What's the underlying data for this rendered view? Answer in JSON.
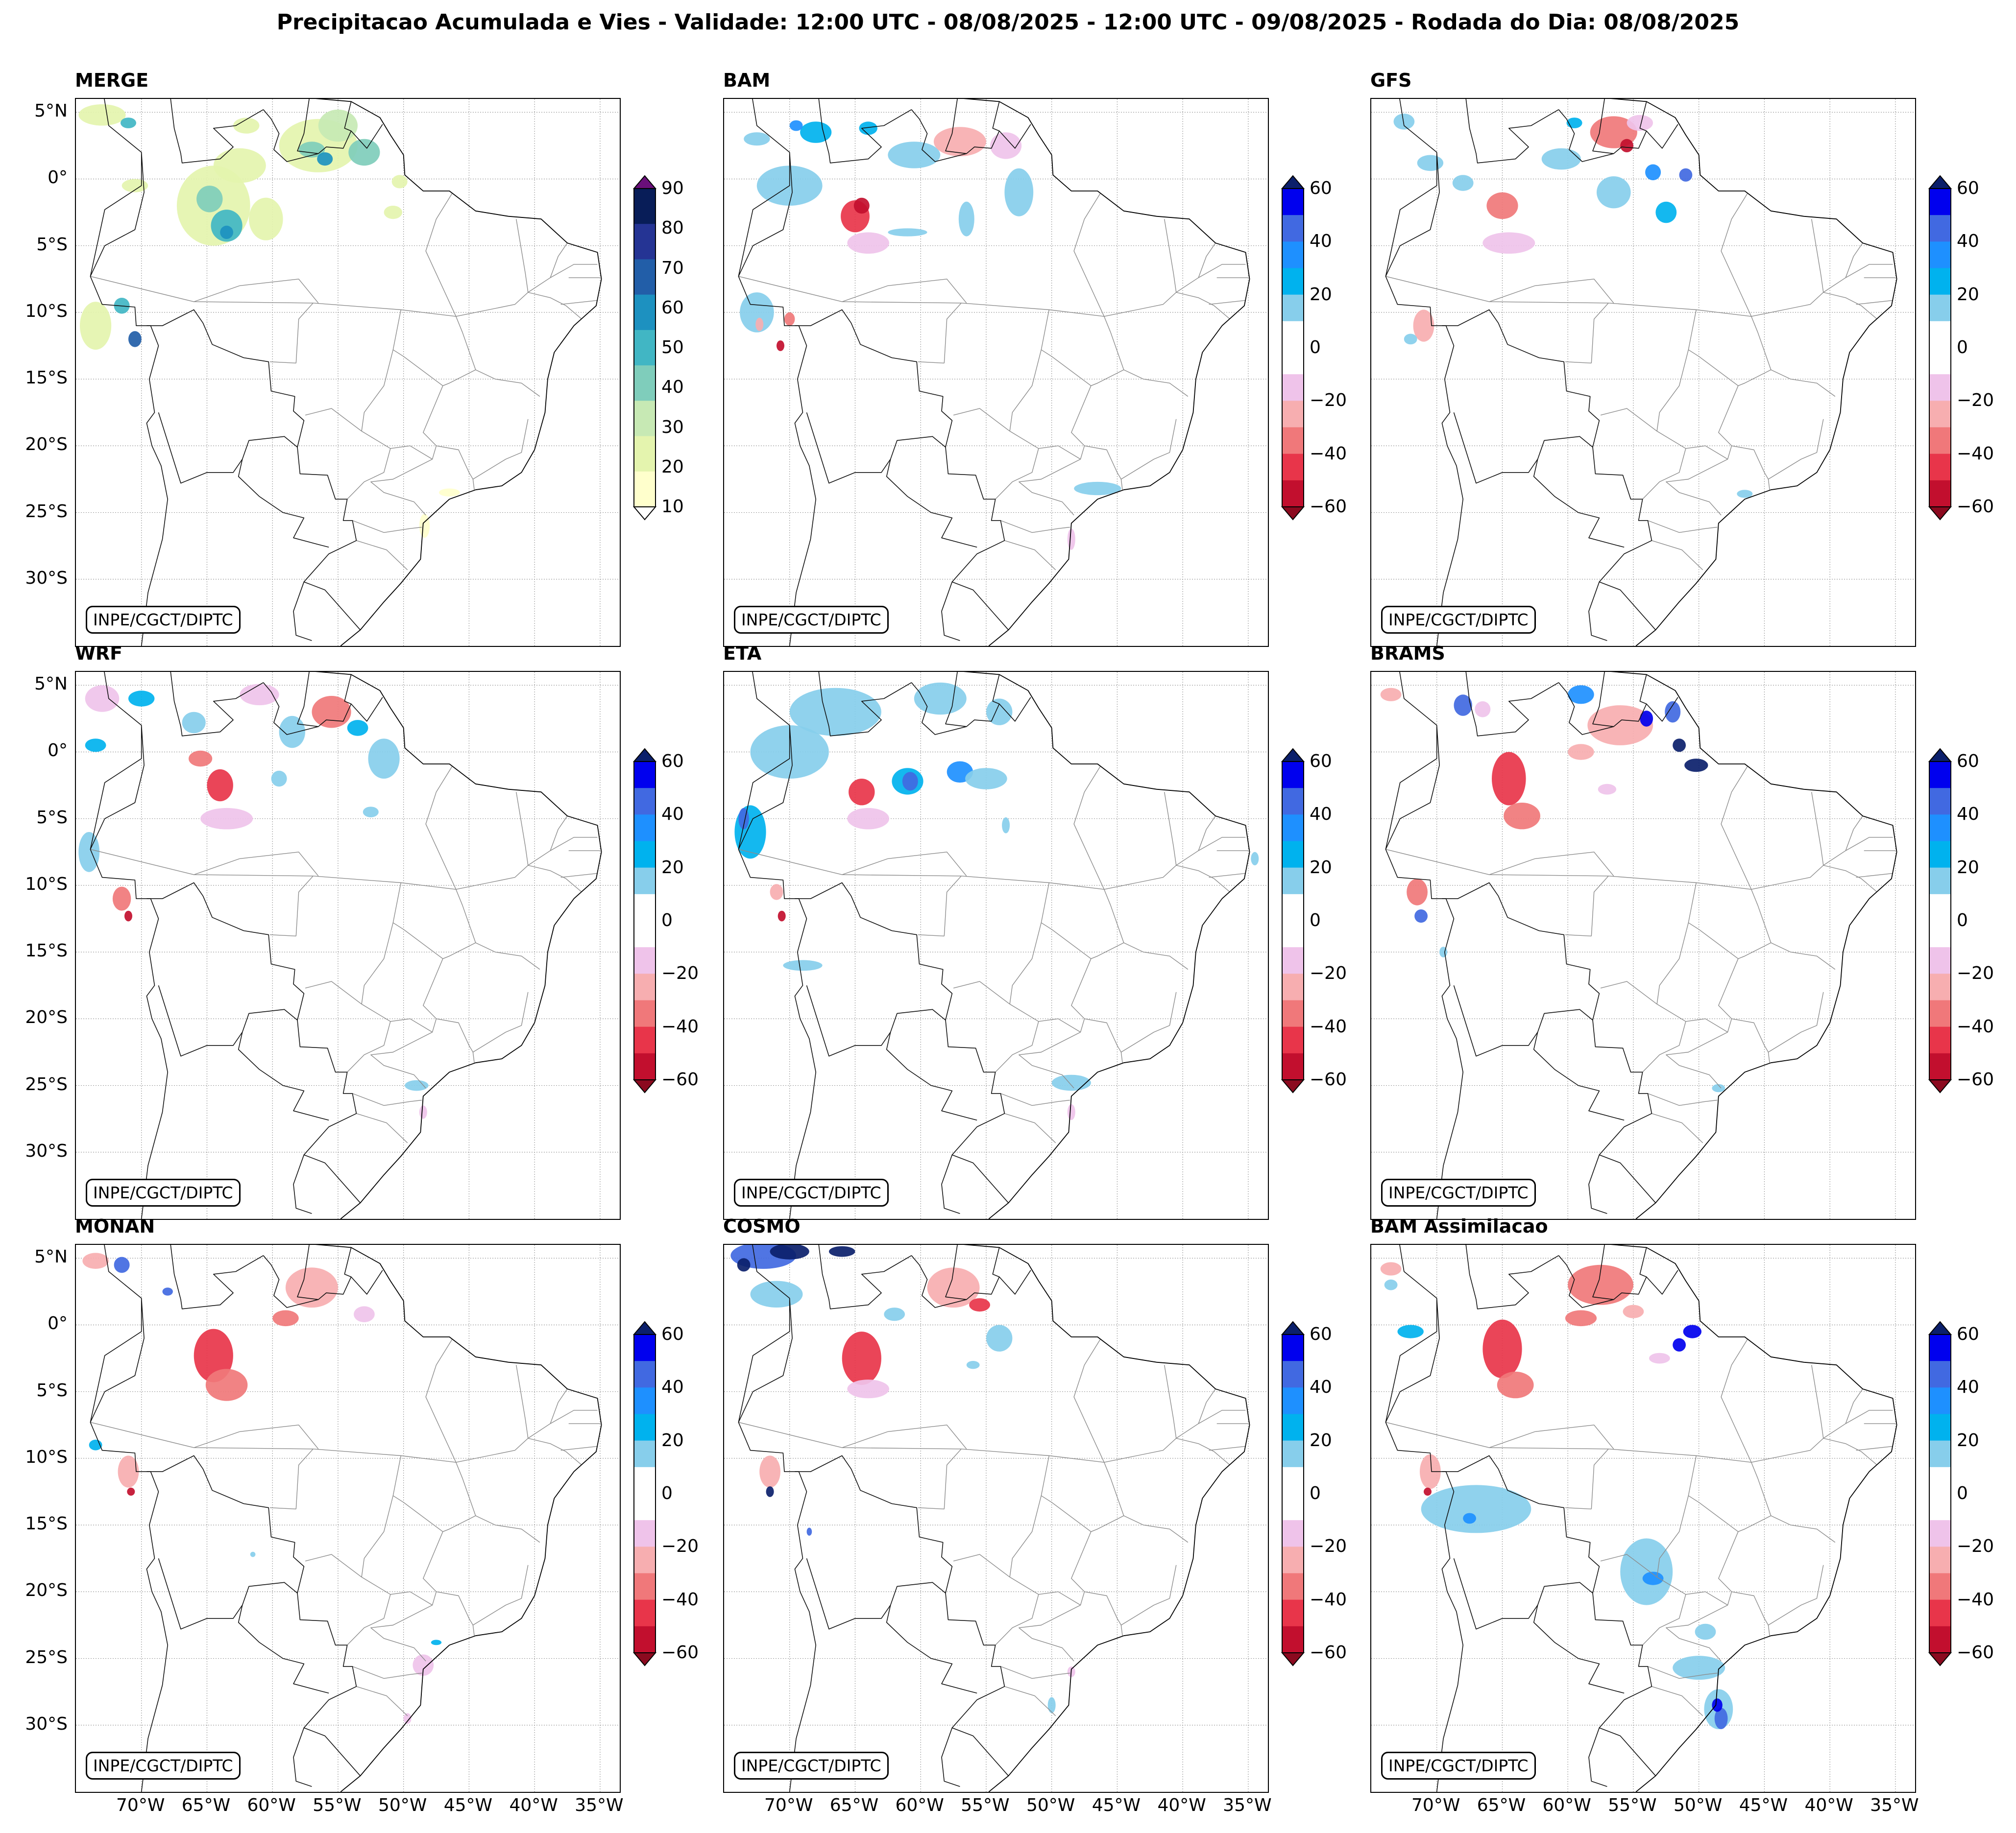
{
  "title": "Precipitacao Acumulada e Vies - Validade: 12:00 UTC - 08/08/2025 - 12:00 UTC - 09/08/2025 - Rodada do Dia: 08/08/2025",
  "credit": "INPE/CGCT/DIPTC",
  "lat_labels": [
    "5°N",
    "0°",
    "5°S",
    "10°S",
    "15°S",
    "20°S",
    "25°S",
    "30°S"
  ],
  "lon_labels": [
    "70°W",
    "65°W",
    "60°W",
    "55°W",
    "50°W",
    "45°W",
    "40°W",
    "35°W"
  ],
  "colors": {
    "merge": [
      "#ffffcc",
      "#e4f4ae",
      "#c7e9b4",
      "#7fcdbb",
      "#41b6c4",
      "#1d91c0",
      "#225ea8",
      "#253494",
      "#081d58"
    ],
    "merge_over": "#6a0f7a",
    "bias_neg": [
      "#8b0a1f",
      "#c20f2e",
      "#e8354a",
      "#f0787a",
      "#f7aeb0",
      "#efc3ea"
    ],
    "bias_zero": "#ffffff",
    "bias_pos": [
      "#87ceeb",
      "#00b2ee",
      "#1e90ff",
      "#4169e1",
      "#0000ee",
      "#0b1f6b"
    ]
  },
  "panels": [
    {
      "name": "MERGE",
      "type": "precip",
      "ticks": [
        "90",
        "80",
        "70",
        "60",
        "50",
        "40",
        "30",
        "20",
        "10"
      ]
    },
    {
      "name": "BAM",
      "type": "bias",
      "ticks": [
        "60",
        "40",
        "20",
        "0",
        "−20",
        "−40",
        "−60"
      ]
    },
    {
      "name": "GFS",
      "type": "bias",
      "ticks": [
        "60",
        "40",
        "20",
        "0",
        "−20",
        "−40",
        "−60"
      ]
    },
    {
      "name": "WRF",
      "type": "bias",
      "ticks": [
        "60",
        "40",
        "20",
        "0",
        "−20",
        "−40",
        "−60"
      ]
    },
    {
      "name": "ETA",
      "type": "bias",
      "ticks": [
        "60",
        "40",
        "20",
        "0",
        "−20",
        "−40",
        "−60"
      ]
    },
    {
      "name": "BRAMS",
      "type": "bias",
      "ticks": [
        "60",
        "40",
        "20",
        "0",
        "−20",
        "−40",
        "−60"
      ]
    },
    {
      "name": "MONAN",
      "type": "bias",
      "ticks": [
        "60",
        "40",
        "20",
        "0",
        "−20",
        "−40",
        "−60"
      ]
    },
    {
      "name": "COSMO",
      "type": "bias",
      "ticks": [
        "60",
        "40",
        "20",
        "0",
        "−20",
        "−40",
        "−60"
      ]
    },
    {
      "name": "BAM Assimilacao",
      "type": "bias",
      "ticks": [
        "60",
        "40",
        "20",
        "0",
        "−20",
        "−40",
        "−60"
      ]
    }
  ]
}
